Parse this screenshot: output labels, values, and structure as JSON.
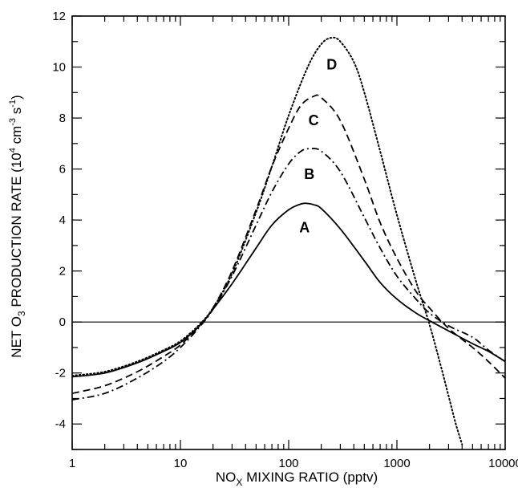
{
  "chart_data": {
    "type": "line",
    "title": "",
    "xlabel": "NO",
    "xlabel_sub": "X",
    "xlabel_rest": " MIXING RATIO (pptv)",
    "ylabel": "NET O",
    "ylabel_sub": "3",
    "ylabel_mid": " PRODUCTION RATE (10",
    "ylabel_sup1": "4",
    "ylabel_mid2": " cm",
    "ylabel_sup2": "-3",
    "ylabel_mid3": " s",
    "ylabel_sup3": "-1",
    "ylabel_end": ")",
    "xscale": "log",
    "xlim": [
      1,
      10000
    ],
    "ylim": [
      -5,
      12
    ],
    "xticks": [
      1,
      10,
      100,
      1000,
      10000
    ],
    "xtick_labels": [
      "1",
      "10",
      "100",
      "1000",
      "10000"
    ],
    "yticks": [
      -4,
      -2,
      0,
      2,
      4,
      6,
      8,
      10,
      12
    ],
    "ytick_labels": [
      "-4",
      "-2",
      "0",
      "2",
      "4",
      "6",
      "8",
      "10",
      "12"
    ],
    "zero_line": true,
    "series": [
      {
        "name": "A",
        "style": "solid",
        "label_pos": [
          140,
          3.7
        ],
        "x": [
          1,
          2,
          4,
          7,
          10,
          15,
          20,
          30,
          50,
          70,
          100,
          130,
          150,
          170,
          200,
          300,
          500,
          700,
          1000,
          1500,
          2000,
          3000,
          5000,
          7000,
          10000
        ],
        "y": [
          -2.15,
          -2.0,
          -1.6,
          -1.15,
          -0.8,
          -0.15,
          0.5,
          1.5,
          2.9,
          3.8,
          4.4,
          4.63,
          4.65,
          4.6,
          4.45,
          3.65,
          2.4,
          1.55,
          0.9,
          0.35,
          0.05,
          -0.35,
          -0.85,
          -1.15,
          -1.55
        ]
      },
      {
        "name": "B",
        "style": "dashdot",
        "label_pos": [
          155,
          5.8
        ],
        "x": [
          1,
          2,
          4,
          7,
          10,
          15,
          20,
          30,
          50,
          70,
          100,
          130,
          160,
          200,
          300,
          500,
          700,
          1000,
          1500,
          2000,
          3000,
          5000,
          7000,
          10000
        ],
        "y": [
          -3.05,
          -2.8,
          -2.2,
          -1.55,
          -1.0,
          -0.2,
          0.5,
          1.8,
          3.8,
          5.1,
          6.2,
          6.7,
          6.8,
          6.7,
          5.9,
          4.1,
          2.9,
          1.8,
          0.9,
          0.35,
          -0.15,
          -0.6,
          -1.1,
          -1.55
        ]
      },
      {
        "name": "C",
        "style": "dashed",
        "label_pos": [
          170,
          7.9
        ],
        "x": [
          1,
          2,
          4,
          7,
          10,
          15,
          20,
          30,
          50,
          70,
          100,
          130,
          170,
          200,
          300,
          500,
          700,
          1000,
          1500,
          2000,
          3000,
          5000,
          7000,
          10000
        ],
        "y": [
          -2.8,
          -2.5,
          -1.95,
          -1.35,
          -0.9,
          -0.15,
          0.55,
          2.0,
          4.4,
          6.1,
          7.6,
          8.5,
          8.85,
          8.8,
          7.9,
          5.6,
          3.9,
          2.5,
          1.2,
          0.55,
          -0.25,
          -1.0,
          -1.55,
          -2.2
        ]
      },
      {
        "name": "D",
        "style": "dotted",
        "label_pos": [
          250,
          10.1
        ],
        "x": [
          1,
          2,
          4,
          7,
          10,
          15,
          20,
          30,
          50,
          70,
          100,
          150,
          200,
          250,
          300,
          400,
          500,
          700,
          1000,
          1500,
          2000,
          2500,
          3000,
          3500,
          4000
        ],
        "y": [
          -2.1,
          -1.95,
          -1.55,
          -1.1,
          -0.75,
          -0.1,
          0.55,
          1.9,
          4.3,
          6.1,
          8.1,
          10.0,
          10.9,
          11.15,
          11.0,
          10.2,
          9.0,
          6.7,
          4.2,
          1.6,
          -0.1,
          -1.6,
          -2.9,
          -4.0,
          -4.8
        ]
      }
    ]
  }
}
